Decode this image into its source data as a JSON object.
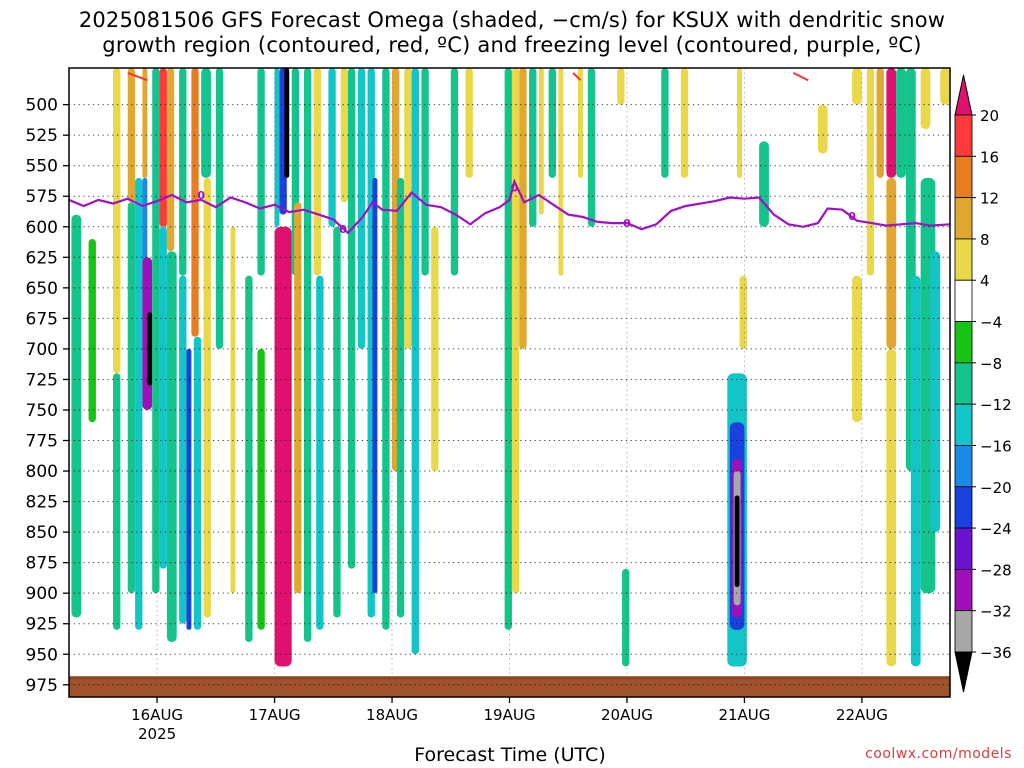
{
  "header": {
    "title_line1": "2025081506 GFS Forecast Omega (shaded, −cm/s) for KSUX with dendritic snow",
    "title_line2": "growth region (contoured, red, ºC) and freezing level (contoured, purple, ºC)"
  },
  "footer": {
    "xlabel": "Forecast Time (UTC)",
    "credit": "coolwx.com/models"
  },
  "chart_data": {
    "type": "heatmap",
    "title": "2025081506 GFS Forecast Omega (shaded, −cm/s) for KSUX with dendritic snow growth region (contoured, red, ºC) and freezing level (contoured, purple, ºC)",
    "xlabel": "Forecast Time (UTC)",
    "ylabel": "",
    "y_axis": {
      "unit": "hPa",
      "inverted": true,
      "range": [
        470,
        985
      ],
      "ticks": [
        500,
        525,
        550,
        575,
        600,
        625,
        650,
        675,
        700,
        725,
        750,
        775,
        800,
        825,
        850,
        875,
        900,
        925,
        950,
        975
      ]
    },
    "x_axis": {
      "unit": "hours since 2025-08-15 06Z",
      "range": [
        0,
        180
      ],
      "ticks": [
        {
          "label": "16AUG",
          "hour": 18,
          "sublabel": "2025"
        },
        {
          "label": "17AUG",
          "hour": 42
        },
        {
          "label": "18AUG",
          "hour": 66
        },
        {
          "label": "19AUG",
          "hour": 90
        },
        {
          "label": "20AUG",
          "hour": 114
        },
        {
          "label": "21AUG",
          "hour": 138
        },
        {
          "label": "22AUG",
          "hour": 162
        }
      ]
    },
    "grid": true,
    "colorbar": {
      "position": "right",
      "labels": [
        "20",
        "16",
        "12",
        "8",
        "4",
        "−4",
        "−8",
        "−12",
        "−16",
        "−20",
        "−24",
        "−28",
        "−32",
        "−36"
      ],
      "colors": [
        "#e0106e",
        "#ff3a3a",
        "#e87e23",
        "#e0a830",
        "#e8d84a",
        "#ffffff",
        "#16c416",
        "#14c48c",
        "#12c6c8",
        "#1a8ae8",
        "#1a40e0",
        "#6a14d0",
        "#a010b8",
        "#a8a8a8",
        "#000000"
      ]
    },
    "freezing_level": {
      "color": "#a010c8",
      "label": "0",
      "points": [
        [
          0,
          578
        ],
        [
          3,
          583
        ],
        [
          6,
          578
        ],
        [
          9,
          581
        ],
        [
          12,
          577
        ],
        [
          15,
          583
        ],
        [
          18,
          579
        ],
        [
          21,
          574
        ],
        [
          24,
          580
        ],
        [
          27,
          578
        ],
        [
          30,
          584
        ],
        [
          33,
          576
        ],
        [
          36,
          580
        ],
        [
          39,
          585
        ],
        [
          42,
          582
        ],
        [
          45,
          588
        ],
        [
          48,
          586
        ],
        [
          51,
          590
        ],
        [
          54,
          594
        ],
        [
          57,
          605
        ],
        [
          60,
          592
        ],
        [
          62,
          580
        ],
        [
          64,
          586
        ],
        [
          67,
          587
        ],
        [
          70,
          572
        ],
        [
          73,
          582
        ],
        [
          76,
          584
        ],
        [
          79,
          590
        ],
        [
          82,
          598
        ],
        [
          85,
          589
        ],
        [
          88,
          584
        ],
        [
          90,
          578
        ],
        [
          91,
          563
        ],
        [
          93,
          580
        ],
        [
          96,
          574
        ],
        [
          99,
          582
        ],
        [
          102,
          590
        ],
        [
          105,
          592
        ],
        [
          108,
          596
        ],
        [
          111,
          597
        ],
        [
          114,
          597
        ],
        [
          117,
          602
        ],
        [
          120,
          598
        ],
        [
          123,
          587
        ],
        [
          126,
          583
        ],
        [
          129,
          581
        ],
        [
          132,
          579
        ],
        [
          135,
          576
        ],
        [
          138,
          577
        ],
        [
          141,
          576
        ],
        [
          144,
          590
        ],
        [
          147,
          598
        ],
        [
          150,
          600
        ],
        [
          153,
          597
        ],
        [
          155,
          585
        ],
        [
          158,
          586
        ],
        [
          161,
          595
        ],
        [
          164,
          597
        ],
        [
          167,
          599
        ],
        [
          170,
          598
        ],
        [
          173,
          597
        ],
        [
          176,
          599
        ],
        [
          180,
          598
        ]
      ]
    },
    "omega_cells": [
      {
        "t": [
          0.5,
          2.5
        ],
        "p": [
          590,
          920
        ],
        "v": -8
      },
      {
        "t": [
          4,
          5.5
        ],
        "p": [
          610,
          760
        ],
        "v": -6
      },
      {
        "t": [
          9,
          10.5
        ],
        "p": [
          470,
          720
        ],
        "v": 6
      },
      {
        "t": [
          9,
          10.5
        ],
        "p": [
          720,
          930
        ],
        "v": -8
      },
      {
        "t": [
          12,
          13.5
        ],
        "p": [
          470,
          580
        ],
        "v": 9
      },
      {
        "t": [
          12,
          13.5
        ],
        "p": [
          580,
          900
        ],
        "v": -8
      },
      {
        "t": [
          13.5,
          15
        ],
        "p": [
          560,
          930
        ],
        "v": -14
      },
      {
        "t": [
          15,
          16
        ],
        "p": [
          470,
          560
        ],
        "v": 10
      },
      {
        "t": [
          15,
          16
        ],
        "p": [
          560,
          700
        ],
        "v": -18
      },
      {
        "t": [
          15,
          17
        ],
        "p": [
          625,
          750
        ],
        "v": -30
      },
      {
        "t": [
          16,
          17
        ],
        "p": [
          670,
          730
        ],
        "v": -38
      },
      {
        "t": [
          17,
          18.5
        ],
        "p": [
          470,
          900
        ],
        "v": -10
      },
      {
        "t": [
          18.5,
          20
        ],
        "p": [
          470,
          600
        ],
        "v": 18
      },
      {
        "t": [
          18.5,
          20
        ],
        "p": [
          600,
          880
        ],
        "v": -12
      },
      {
        "t": [
          20,
          21.5
        ],
        "p": [
          470,
          620
        ],
        "v": 10
      },
      {
        "t": [
          20,
          22
        ],
        "p": [
          620,
          940
        ],
        "v": -8
      },
      {
        "t": [
          22.5,
          24
        ],
        "p": [
          470,
          640
        ],
        "v": -9
      },
      {
        "t": [
          22.5,
          24
        ],
        "p": [
          640,
          925
        ],
        "v": -14
      },
      {
        "t": [
          24,
          25
        ],
        "p": [
          700,
          930
        ],
        "v": -22
      },
      {
        "t": [
          25,
          26.5
        ],
        "p": [
          470,
          690
        ],
        "v": 14
      },
      {
        "t": [
          25.5,
          27
        ],
        "p": [
          690,
          930
        ],
        "v": -12
      },
      {
        "t": [
          27,
          29
        ],
        "p": [
          470,
          560
        ],
        "v": -10
      },
      {
        "t": [
          27.5,
          29
        ],
        "p": [
          560,
          920
        ],
        "v": 6
      },
      {
        "t": [
          30,
          31.5
        ],
        "p": [
          470,
          700
        ],
        "v": -8
      },
      {
        "t": [
          33,
          34
        ],
        "p": [
          600,
          900
        ],
        "v": 6
      },
      {
        "t": [
          36,
          37.5
        ],
        "p": [
          640,
          940
        ],
        "v": -8
      },
      {
        "t": [
          38.5,
          40
        ],
        "p": [
          470,
          640
        ],
        "v": -8
      },
      {
        "t": [
          38.5,
          40
        ],
        "p": [
          700,
          930
        ],
        "v": -6
      },
      {
        "t": [
          42,
          43
        ],
        "p": [
          470,
          600
        ],
        "v": -14
      },
      {
        "t": [
          43,
          44.5
        ],
        "p": [
          470,
          590
        ],
        "v": -22
      },
      {
        "t": [
          44,
          45
        ],
        "p": [
          470,
          560
        ],
        "v": -38
      },
      {
        "t": [
          42,
          45.5
        ],
        "p": [
          600,
          960
        ],
        "v": 22
      },
      {
        "t": [
          45.5,
          47
        ],
        "p": [
          470,
          640
        ],
        "v": -10
      },
      {
        "t": [
          46,
          47.5
        ],
        "p": [
          580,
          900
        ],
        "v": 9
      },
      {
        "t": [
          48,
          49.5
        ],
        "p": [
          470,
          940
        ],
        "v": -8
      },
      {
        "t": [
          50,
          51.5
        ],
        "p": [
          470,
          640
        ],
        "v": 6
      },
      {
        "t": [
          50.5,
          52
        ],
        "p": [
          640,
          930
        ],
        "v": -12
      },
      {
        "t": [
          53,
          54.5
        ],
        "p": [
          470,
          600
        ],
        "v": -12
      },
      {
        "t": [
          54,
          55.5
        ],
        "p": [
          600,
          920
        ],
        "v": -8
      },
      {
        "t": [
          55.5,
          57
        ],
        "p": [
          470,
          580
        ],
        "v": 8
      },
      {
        "t": [
          57,
          58.5
        ],
        "p": [
          470,
          880
        ],
        "v": -10
      },
      {
        "t": [
          59,
          60.5
        ],
        "p": [
          470,
          700
        ],
        "v": -14
      },
      {
        "t": [
          61,
          62.5
        ],
        "p": [
          470,
          920
        ],
        "v": -14
      },
      {
        "t": [
          62,
          63
        ],
        "p": [
          560,
          900
        ],
        "v": -22
      },
      {
        "t": [
          64,
          65.5
        ],
        "p": [
          470,
          930
        ],
        "v": -10
      },
      {
        "t": [
          66,
          67.5
        ],
        "p": [
          470,
          800
        ],
        "v": 12
      },
      {
        "t": [
          67,
          68.5
        ],
        "p": [
          560,
          920
        ],
        "v": -8
      },
      {
        "t": [
          68.5,
          70
        ],
        "p": [
          470,
          700
        ],
        "v": 6
      },
      {
        "t": [
          70,
          71.5
        ],
        "p": [
          470,
          950
        ],
        "v": -14
      },
      {
        "t": [
          72,
          73.5
        ],
        "p": [
          470,
          640
        ],
        "v": -8
      },
      {
        "t": [
          74,
          75.5
        ],
        "p": [
          600,
          800
        ],
        "v": 6
      },
      {
        "t": [
          78,
          79.5
        ],
        "p": [
          470,
          640
        ],
        "v": -8
      },
      {
        "t": [
          81,
          82.5
        ],
        "p": [
          470,
          560
        ],
        "v": 6
      },
      {
        "t": [
          89,
          90.5
        ],
        "p": [
          470,
          930
        ],
        "v": -8
      },
      {
        "t": [
          90.5,
          92
        ],
        "p": [
          470,
          900
        ],
        "v": 6
      },
      {
        "t": [
          92,
          93.5
        ],
        "p": [
          470,
          700
        ],
        "v": 10
      },
      {
        "t": [
          94,
          95.5
        ],
        "p": [
          470,
          600
        ],
        "v": -8
      },
      {
        "t": [
          96,
          97
        ],
        "p": [
          470,
          590
        ],
        "v": 6
      },
      {
        "t": [
          98,
          99.5
        ],
        "p": [
          470,
          560
        ],
        "v": -8
      },
      {
        "t": [
          100,
          101
        ],
        "p": [
          470,
          640
        ],
        "v": 6
      },
      {
        "t": [
          104,
          105
        ],
        "p": [
          470,
          560
        ],
        "v": 6
      },
      {
        "t": [
          106,
          107.5
        ],
        "p": [
          470,
          600
        ],
        "v": -8
      },
      {
        "t": [
          112,
          113.5
        ],
        "p": [
          470,
          500
        ],
        "v": 6
      },
      {
        "t": [
          113,
          114.5
        ],
        "p": [
          880,
          960
        ],
        "v": -10
      },
      {
        "t": [
          121,
          122.5
        ],
        "p": [
          470,
          560
        ],
        "v": -8
      },
      {
        "t": [
          125,
          126.5
        ],
        "p": [
          470,
          560
        ],
        "v": 6
      },
      {
        "t": [
          134.5,
          138.5
        ],
        "p": [
          720,
          960
        ],
        "v": -14
      },
      {
        "t": [
          135,
          138
        ],
        "p": [
          760,
          930
        ],
        "v": -20
      },
      {
        "t": [
          135.5,
          137.5
        ],
        "p": [
          790,
          920
        ],
        "v": -28
      },
      {
        "t": [
          135.8,
          137.2
        ],
        "p": [
          800,
          910
        ],
        "v": -34
      },
      {
        "t": [
          136,
          137
        ],
        "p": [
          820,
          895
        ],
        "v": -38
      },
      {
        "t": [
          136.5,
          137.5
        ],
        "p": [
          470,
          560
        ],
        "v": 6
      },
      {
        "t": [
          137,
          138.5
        ],
        "p": [
          640,
          700
        ],
        "v": 6
      },
      {
        "t": [
          141,
          143
        ],
        "p": [
          530,
          600
        ],
        "v": -8
      },
      {
        "t": [
          153,
          155
        ],
        "p": [
          500,
          540
        ],
        "v": 6
      },
      {
        "t": [
          160,
          162
        ],
        "p": [
          470,
          500
        ],
        "v": 6
      },
      {
        "t": [
          160,
          162
        ],
        "p": [
          640,
          760
        ],
        "v": 6
      },
      {
        "t": [
          163,
          164.5
        ],
        "p": [
          470,
          640
        ],
        "v": 6
      },
      {
        "t": [
          165,
          166.5
        ],
        "p": [
          470,
          560
        ],
        "v": 10
      },
      {
        "t": [
          167,
          169
        ],
        "p": [
          470,
          560
        ],
        "v": 22
      },
      {
        "t": [
          167,
          169
        ],
        "p": [
          560,
          700
        ],
        "v": 12
      },
      {
        "t": [
          167,
          169
        ],
        "p": [
          700,
          960
        ],
        "v": 6
      },
      {
        "t": [
          169,
          171
        ],
        "p": [
          470,
          560
        ],
        "v": -8
      },
      {
        "t": [
          171,
          173
        ],
        "p": [
          470,
          800
        ],
        "v": -8
      },
      {
        "t": [
          172,
          174
        ],
        "p": [
          640,
          960
        ],
        "v": -12
      },
      {
        "t": [
          174,
          176
        ],
        "p": [
          470,
          520
        ],
        "v": 6
      },
      {
        "t": [
          174,
          177
        ],
        "p": [
          560,
          900
        ],
        "v": -8
      },
      {
        "t": [
          176,
          178
        ],
        "p": [
          620,
          850
        ],
        "v": -12
      },
      {
        "t": [
          178,
          180
        ],
        "p": [
          470,
          500
        ],
        "v": 6
      }
    ]
  }
}
